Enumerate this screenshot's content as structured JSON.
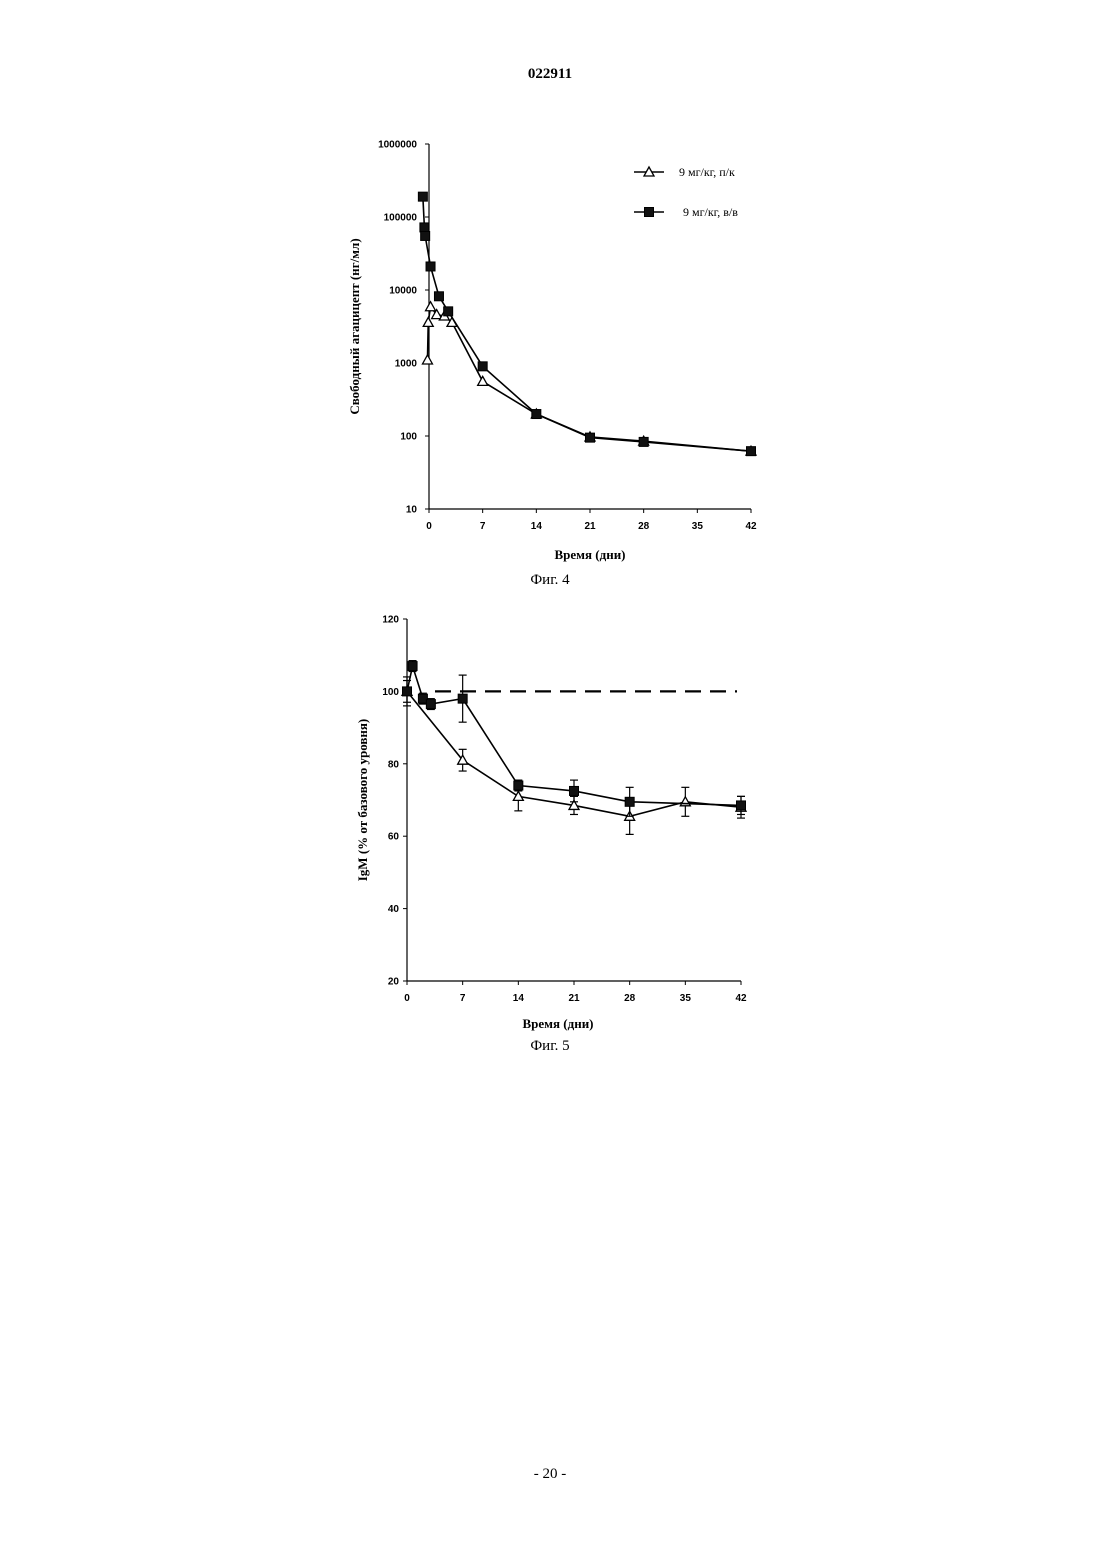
{
  "header": {
    "doc_number": "022911"
  },
  "footer": {
    "page_number": "- 20 -"
  },
  "chart_data": [
    {
      "type": "line",
      "caption": "Фиг. 4",
      "xlabel": "Время (дни)",
      "ylabel": "Свободный агацицепт (нг/мл)",
      "xlim": [
        0,
        42
      ],
      "ylim": [
        10,
        1000000
      ],
      "yscale": "log",
      "xticks": [
        "0",
        "7",
        "14",
        "21",
        "28",
        "35",
        "42"
      ],
      "yticks": [
        "10",
        "100",
        "1000",
        "10000",
        "100000",
        "1000000"
      ],
      "legend": "top-right",
      "series": [
        {
          "name": "9 мг/кг, п/к",
          "marker": "open-triangle",
          "x": [
            -0.2,
            -0.1,
            0.2,
            1,
            2,
            3,
            7,
            14,
            21,
            28,
            42
          ],
          "y": [
            1100,
            3600,
            5900,
            4600,
            4400,
            3600,
            560,
            200,
            97,
            85,
            62
          ]
        },
        {
          "name": "9 мг/кг, в/в",
          "marker": "filled-square",
          "x": [
            -0.8,
            -0.6,
            -0.5,
            0.2,
            1.3,
            2.5,
            7,
            14,
            21,
            28,
            42
          ],
          "y": [
            190000,
            72000,
            55000,
            21000,
            8200,
            5100,
            900,
            200,
            95,
            83,
            62
          ]
        }
      ]
    },
    {
      "type": "line",
      "caption": "Фиг. 5",
      "xlabel": "Время (дни)",
      "ylabel": "IgM (% от базового уровня)",
      "xlim": [
        0,
        42
      ],
      "ylim": [
        20,
        120
      ],
      "xticks": [
        "0",
        "7",
        "14",
        "21",
        "28",
        "35",
        "42"
      ],
      "yticks": [
        "20",
        "40",
        "60",
        "80",
        "100",
        "120"
      ],
      "reference_line": 100,
      "series": [
        {
          "name": "open-triangle",
          "marker": "open-triangle",
          "x": [
            0,
            7,
            14,
            21,
            28,
            35,
            42
          ],
          "y": [
            100,
            81,
            71,
            68.5,
            65.5,
            69.5,
            68
          ],
          "err": [
            4,
            3,
            4,
            2.5,
            5,
            4,
            3
          ]
        },
        {
          "name": "filled-square",
          "marker": "filled-square",
          "x": [
            0,
            0.7,
            2,
            3,
            7,
            14,
            21,
            28,
            42
          ],
          "y": [
            100,
            107,
            98,
            96.5,
            98,
            74,
            72.5,
            69.5,
            68.5
          ],
          "err": [
            3,
            1.5,
            1.5,
            1.5,
            6.5,
            1.5,
            3,
            4,
            2.5
          ]
        }
      ]
    }
  ]
}
